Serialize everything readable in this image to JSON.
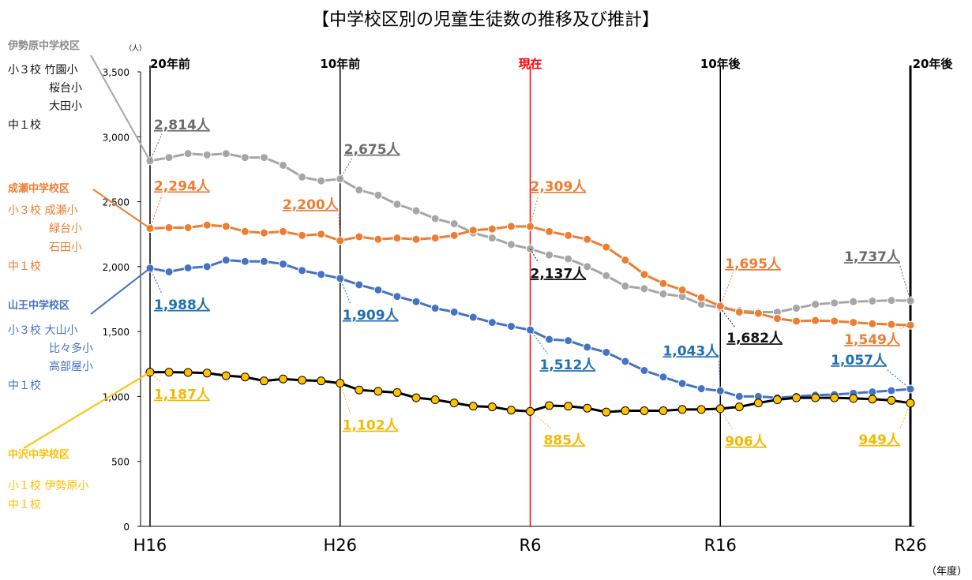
{
  "chart_data": {
    "type": "line",
    "title": "【中学校区別の児童生徒数の推移及び推計】",
    "y_unit": "（人）",
    "x_unit": "（年度）",
    "categories": [
      "H16",
      null,
      null,
      null,
      null,
      null,
      null,
      null,
      null,
      null,
      "H26",
      null,
      null,
      null,
      null,
      null,
      null,
      null,
      null,
      null,
      "R6",
      null,
      null,
      null,
      null,
      null,
      null,
      null,
      null,
      null,
      "R16",
      null,
      null,
      null,
      null,
      null,
      null,
      null,
      null,
      null,
      "R26"
    ],
    "period_labels": [
      {
        "index": 0,
        "label": "20年前",
        "color": "#000000"
      },
      {
        "index": 10,
        "label": "10年前",
        "color": "#000000"
      },
      {
        "index": 20,
        "label": "現在",
        "color": "#ff0000"
      },
      {
        "index": 30,
        "label": "10年後",
        "color": "#000000"
      },
      {
        "index": 40,
        "label": "20年後",
        "color": "#000000"
      }
    ],
    "ylim": [
      0,
      3500
    ],
    "yticks": [
      0,
      500,
      {
        "value": 1000,
        "label": "1,000"
      },
      {
        "value": 1500,
        "label": "1,500"
      },
      {
        "value": 2000,
        "label": "2,000"
      },
      {
        "value": 2500,
        "label": "2,500"
      },
      {
        "value": 3000,
        "label": "3,000"
      },
      {
        "value": 3500,
        "label": "3,500"
      }
    ],
    "series": [
      {
        "name": "伊勢原中学校区",
        "color": "#a6a6a6",
        "line_color": "#a6a6a6",
        "schools": [
          "小３校 竹園小",
          "桜台小",
          "大田小",
          "中１校"
        ],
        "values": [
          2814,
          2840,
          2870,
          2860,
          2870,
          2840,
          2840,
          2780,
          2690,
          2660,
          2675,
          2590,
          2550,
          2480,
          2430,
          2370,
          2330,
          2260,
          2220,
          2170,
          2137,
          2090,
          2060,
          2000,
          1930,
          1850,
          1830,
          1790,
          1770,
          1710,
          1682,
          1660,
          1650,
          1650,
          1680,
          1710,
          1720,
          1730,
          1735,
          1740,
          1737
        ],
        "value_labels": [
          "2,814人",
          null,
          null,
          null,
          null,
          null,
          null,
          null,
          null,
          null,
          "2,675人",
          null,
          null,
          null,
          null,
          null,
          null,
          null,
          null,
          null,
          "2,137人",
          null,
          null,
          null,
          null,
          null,
          null,
          null,
          null,
          null,
          "1,682人",
          null,
          null,
          null,
          null,
          null,
          null,
          null,
          null,
          null,
          "1,737人"
        ]
      },
      {
        "name": "成瀬中学校区",
        "color": "#ed7d31",
        "line_color": "#ed7d31",
        "schools": [
          "小３校 成瀬小",
          "緑台小",
          "石田小",
          "中１校"
        ],
        "values": [
          2294,
          2300,
          2300,
          2320,
          2310,
          2270,
          2260,
          2270,
          2240,
          2250,
          2200,
          2230,
          2210,
          2220,
          2210,
          2220,
          2240,
          2280,
          2290,
          2310,
          2309,
          2270,
          2240,
          2210,
          2150,
          2050,
          1940,
          1870,
          1820,
          1760,
          1695,
          1650,
          1640,
          1600,
          1580,
          1585,
          1580,
          1570,
          1560,
          1555,
          1549
        ],
        "value_labels": [
          "2,294人",
          null,
          null,
          null,
          null,
          null,
          null,
          null,
          null,
          null,
          "2,200人",
          null,
          null,
          null,
          null,
          null,
          null,
          null,
          null,
          null,
          "2,309人",
          null,
          null,
          null,
          null,
          null,
          null,
          null,
          null,
          null,
          "1,695人",
          null,
          null,
          null,
          null,
          null,
          null,
          null,
          null,
          null,
          "1,549人"
        ]
      },
      {
        "name": "山王中学校区",
        "color": "#4472c4",
        "line_color": "#4472c4",
        "schools": [
          "小３校 大山小",
          "比々多小",
          "高部屋小",
          "中１校"
        ],
        "values": [
          1988,
          1960,
          1990,
          2000,
          2050,
          2040,
          2040,
          2020,
          1970,
          1940,
          1909,
          1860,
          1820,
          1770,
          1730,
          1680,
          1650,
          1610,
          1570,
          1540,
          1512,
          1440,
          1430,
          1380,
          1340,
          1270,
          1200,
          1150,
          1100,
          1060,
          1043,
          1000,
          1000,
          990,
          1000,
          1010,
          1015,
          1025,
          1035,
          1045,
          1057
        ],
        "value_labels": [
          "1,988人",
          null,
          null,
          null,
          null,
          null,
          null,
          null,
          null,
          null,
          "1,909人",
          null,
          null,
          null,
          null,
          null,
          null,
          null,
          null,
          null,
          "1,512人",
          null,
          null,
          null,
          null,
          null,
          null,
          null,
          null,
          null,
          "1,043人",
          null,
          null,
          null,
          null,
          null,
          null,
          null,
          null,
          null,
          "1,057人"
        ]
      },
      {
        "name": "中沢中学校区",
        "color": "#ffc000",
        "line_color": "#000000",
        "schools": [
          "小１校 伊勢原小",
          "中１校"
        ],
        "values": [
          1187,
          1187,
          1185,
          1180,
          1160,
          1150,
          1120,
          1135,
          1125,
          1120,
          1102,
          1050,
          1040,
          1030,
          990,
          975,
          950,
          925,
          920,
          895,
          885,
          930,
          925,
          910,
          880,
          890,
          890,
          890,
          900,
          900,
          906,
          920,
          950,
          975,
          990,
          990,
          990,
          985,
          980,
          970,
          949
        ],
        "value_labels": [
          "1,187人",
          null,
          null,
          null,
          null,
          null,
          null,
          null,
          null,
          null,
          "1,102人",
          null,
          null,
          null,
          null,
          null,
          null,
          null,
          null,
          null,
          "885人",
          null,
          null,
          null,
          null,
          null,
          null,
          null,
          null,
          null,
          "906人",
          null,
          null,
          null,
          null,
          null,
          null,
          null,
          null,
          null,
          "949人"
        ]
      }
    ]
  }
}
